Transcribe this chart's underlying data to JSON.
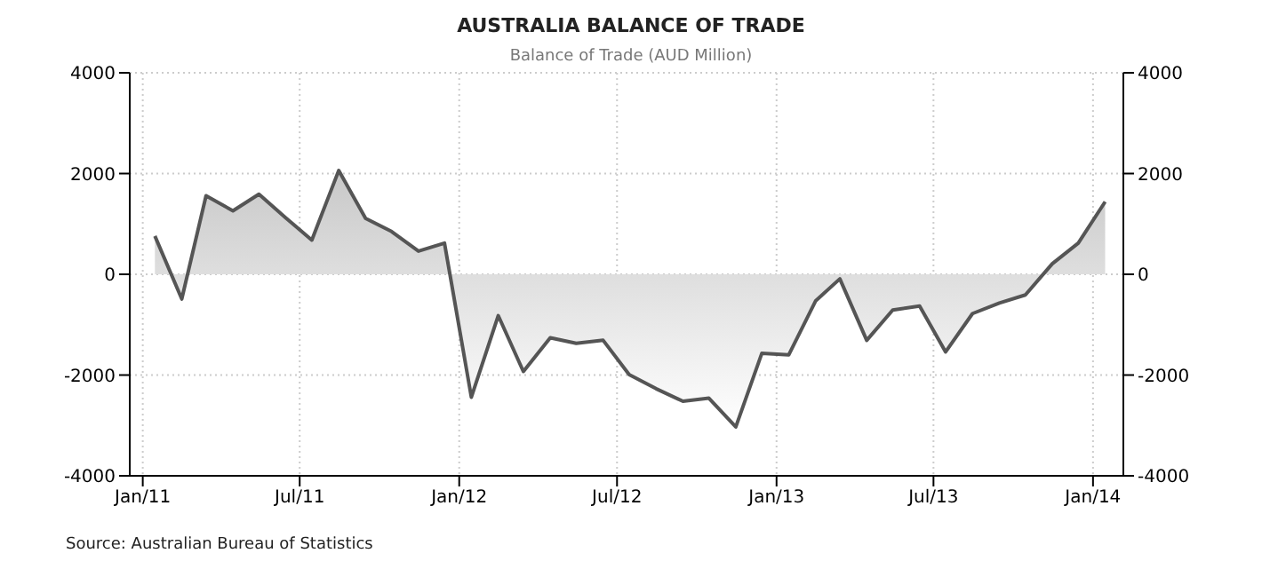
{
  "chart_data": {
    "type": "area",
    "title": "AUSTRALIA BALANCE OF TRADE",
    "subtitle": "Balance of Trade (AUD Million)",
    "annotations": [
      "Source: Australian Bureau of Statistics"
    ],
    "x": [
      "2011-01-15",
      "2011-02-15",
      "2011-03-15",
      "2011-04-15",
      "2011-05-15",
      "2011-06-15",
      "2011-07-15",
      "2011-08-15",
      "2011-09-15",
      "2011-10-15",
      "2011-11-15",
      "2011-12-15",
      "2012-01-15",
      "2012-02-15",
      "2012-03-15",
      "2012-04-15",
      "2012-05-15",
      "2012-06-15",
      "2012-07-15",
      "2012-08-15",
      "2012-09-15",
      "2012-10-15",
      "2012-11-15",
      "2012-12-15",
      "2013-01-15",
      "2013-02-15",
      "2013-03-15",
      "2013-04-15",
      "2013-05-15",
      "2013-06-15",
      "2013-07-15",
      "2013-08-15",
      "2013-09-15",
      "2013-10-15",
      "2013-11-15",
      "2013-12-15",
      "2014-01-15"
    ],
    "series": [
      {
        "color": "#555555",
        "values": [
          760,
          -490,
          1560,
          1260,
          1590,
          1120,
          680,
          2060,
          1110,
          850,
          460,
          620,
          -2440,
          -820,
          -1930,
          -1260,
          -1370,
          -1310,
          -1990,
          -2270,
          -2520,
          -2460,
          -3030,
          -1570,
          -1600,
          -530,
          -90,
          -1310,
          -710,
          -630,
          -1540,
          -780,
          -570,
          -410,
          210,
          620,
          1440
        ]
      }
    ],
    "xlim": [
      "2010-12-17",
      "2014-02-05"
    ],
    "xticks": [
      {
        "value": "2011-01-01",
        "label": "Jan/11"
      },
      {
        "value": "2011-07-01",
        "label": "Jul/11"
      },
      {
        "value": "2012-01-01",
        "label": "Jan/12"
      },
      {
        "value": "2012-07-01",
        "label": "Jul/12"
      },
      {
        "value": "2013-01-01",
        "label": "Jan/13"
      },
      {
        "value": "2013-07-01",
        "label": "Jul/13"
      },
      {
        "value": "2014-01-01",
        "label": "Jan/14"
      }
    ],
    "ylim": [
      -4000,
      4000
    ],
    "yticks": [
      -4000,
      -2000,
      0,
      2000,
      4000
    ],
    "y2lim": [
      -4000,
      4000
    ],
    "y2ticks": [
      -4000,
      -2000,
      0,
      2000,
      4000
    ],
    "grid": true,
    "legend": false
  }
}
